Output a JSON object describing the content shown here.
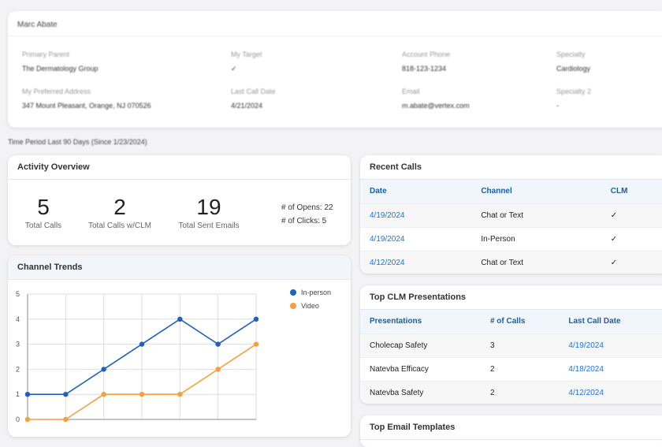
{
  "profile": {
    "name": "Marc Abate",
    "fields": [
      {
        "label": "Primary Parent",
        "value": "The Dermatology Group"
      },
      {
        "label": "My Target",
        "value": "✓"
      },
      {
        "label": "Account Phone",
        "value": "818-123-1234"
      },
      {
        "label": "Specialty",
        "value": "Cardiology"
      },
      {
        "label": "My Preferred Address",
        "value": "347 Mount Pleasant, Orange, NJ 070526"
      },
      {
        "label": "Last Call Date",
        "value": "4/21/2024"
      },
      {
        "label": "Email",
        "value": "m.abate@vertex.com"
      },
      {
        "label": "Specialty 2",
        "value": "-"
      }
    ]
  },
  "time_period": "Time Period Last 90 Days (Since 1/23/2024)",
  "activity": {
    "title": "Activity Overview",
    "stats": [
      {
        "value": "5",
        "label": "Total Calls"
      },
      {
        "value": "2",
        "label": "Total Calls w/CLM"
      },
      {
        "value": "19",
        "label": "Total Sent Emails"
      }
    ],
    "opens": "# of Opens: 22",
    "clicks": "# of Clicks: 5"
  },
  "trends": {
    "title": "Channel Trends"
  },
  "chart_data": {
    "type": "line",
    "title": "Channel Trends",
    "ylim": [
      0,
      5
    ],
    "yticks": [
      "0",
      "1",
      "2",
      "3",
      "4",
      "5"
    ],
    "series": [
      {
        "name": "In-person",
        "color": "#2060c0",
        "values": [
          1,
          1,
          2,
          3,
          4,
          3,
          4
        ]
      },
      {
        "name": "Video",
        "color": "#f5a03c",
        "values": [
          0,
          0,
          1,
          1,
          1,
          2,
          3
        ]
      }
    ],
    "legend": "top-right"
  },
  "recent_calls": {
    "title": "Recent Calls",
    "headers": [
      "Date",
      "Channel",
      "CLM"
    ],
    "rows": [
      [
        "4/19/2024",
        "Chat or Text",
        "✓"
      ],
      [
        "4/19/2024",
        "In-Person",
        "✓"
      ],
      [
        "4/12/2024",
        "Chat or Text",
        "✓"
      ]
    ]
  },
  "top_clm": {
    "title": "Top CLM Presentations",
    "headers": [
      "Presentations",
      "# of Calls",
      "Last Call Date"
    ],
    "rows": [
      [
        "Cholecap Safety",
        "3",
        "4/19/2024"
      ],
      [
        "Natevba Efficacy",
        "2",
        "4/18/2024"
      ],
      [
        "Natevba Safety",
        "2",
        "4/12/2024"
      ]
    ]
  },
  "top_email": {
    "title": "Top Email Templates"
  }
}
